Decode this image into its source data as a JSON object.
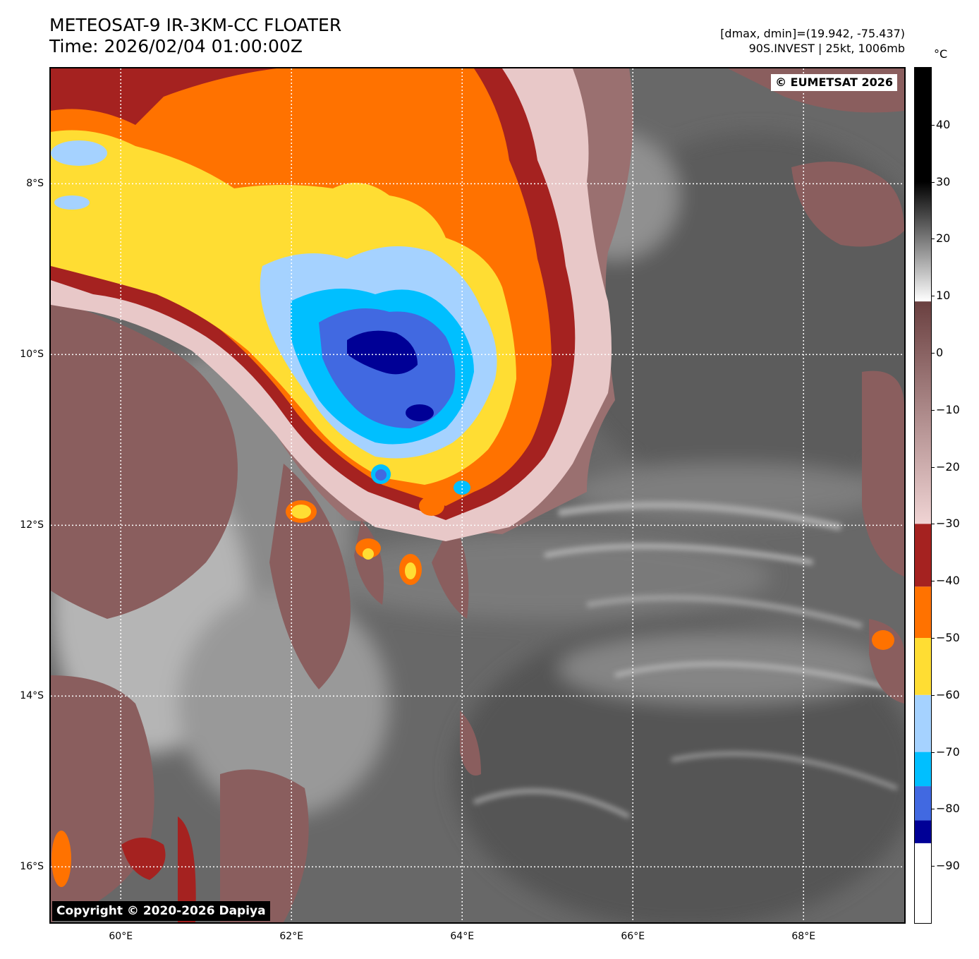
{
  "header": {
    "title_line1": "METEOSAT-9 IR-3KM-CC FLOATER",
    "title_line2": "Time: 2026/02/04 01:00:00Z",
    "range_text": "[dmax, dmin]=(19.942, -75.437)",
    "storm_text": "90S.INVEST | 25kt, 1006mb"
  },
  "credits": {
    "eumetsat": "© EUMETSAT 2026",
    "dapiya": "Copyright © 2020-2026 Dapiya"
  },
  "map": {
    "lat_labels": [
      "8°S",
      "10°S",
      "12°S",
      "14°S",
      "16°S"
    ],
    "lon_labels": [
      "60°E",
      "62°E",
      "64°E",
      "66°E",
      "68°E"
    ],
    "lat_values": [
      -8,
      -10,
      -12,
      -14,
      -16
    ],
    "lon_values": [
      60,
      62,
      64,
      66,
      68
    ],
    "lat_range": [
      -16.65,
      -6.65
    ],
    "lon_range": [
      59.18,
      69.18
    ],
    "storm_center": {
      "lat": -10.0,
      "lon": 63.1
    }
  },
  "colorbar": {
    "unit": "°C",
    "range": [
      -100,
      50
    ],
    "tick_labels": [
      "40",
      "30",
      "20",
      "10",
      "0",
      "−10",
      "−20",
      "−30",
      "−40",
      "−50",
      "−60",
      "−70",
      "−80",
      "−90"
    ],
    "tick_values": [
      40,
      30,
      20,
      10,
      0,
      -10,
      -20,
      -30,
      -40,
      -50,
      -60,
      -70,
      -80,
      -90
    ],
    "bands": [
      {
        "from": -100,
        "to": -86,
        "color": "#ffffff"
      },
      {
        "from": -86,
        "to": -82,
        "color": "#000096"
      },
      {
        "from": -82,
        "to": -76,
        "color": "#4169e1"
      },
      {
        "from": -76,
        "to": -70,
        "color": "#00bfff"
      },
      {
        "from": -70,
        "to": -60,
        "color": "#a5d2ff"
      },
      {
        "from": -60,
        "to": -50,
        "color": "#ffdd33"
      },
      {
        "from": -50,
        "to": -41,
        "color": "#ff7200"
      },
      {
        "from": -41,
        "to": -30,
        "color": "#a52220"
      }
    ],
    "gradient": [
      {
        "value": -30,
        "color": "#f0d4d4"
      },
      {
        "value": 9,
        "color": "#6a4040"
      },
      {
        "value": 9.01,
        "color": "#ffffff"
      },
      {
        "value": 30,
        "color": "#000000"
      },
      {
        "value": 50,
        "color": "#000000"
      }
    ]
  },
  "colors": {
    "background_gray": "#6b6b6b",
    "ocean_dark": "#5a5a5a",
    "low_cloud_light": "#c8c8c8",
    "mid_cloud_brown": "#8a5e5e",
    "dark_red": "#a52220",
    "orange": "#ff7200",
    "yellow": "#ffdd33",
    "pale_blue": "#a5d2ff",
    "cyan": "#00bfff",
    "royal_blue": "#4169e1",
    "navy": "#000096"
  }
}
